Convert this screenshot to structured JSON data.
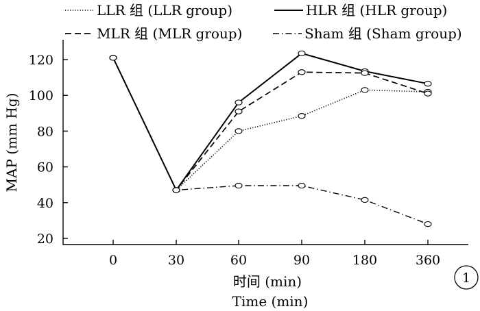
{
  "chart_data": {
    "type": "line",
    "x": [
      "0",
      "30",
      "60",
      "90",
      "180",
      "360"
    ],
    "series": [
      {
        "name": "LLR 组 (LLR group)",
        "style": "dotted",
        "values": [
          121,
          47,
          80,
          88.5,
          103,
          102
        ]
      },
      {
        "name": "HLR 组 (HLR group)",
        "style": "solid",
        "values": [
          121,
          47,
          96,
          123.5,
          113.5,
          106.5
        ]
      },
      {
        "name": "MLR 组 (MLR group)",
        "style": "dashed",
        "values": [
          121,
          47,
          91,
          113,
          112.5,
          101
        ]
      },
      {
        "name": "Sham 组 (Sham group)",
        "style": "dashdot",
        "values": [
          121,
          47,
          49.5,
          49.5,
          41.5,
          28
        ]
      }
    ],
    "ylabel": "MAP  (mm Hg)",
    "xlabel_cn": "时间 (min)",
    "xlabel_en": "Time  (min)",
    "ylim": [
      20,
      130
    ],
    "yticks": [
      20,
      40,
      60,
      80,
      100,
      120
    ],
    "grid": false,
    "legend_placement": "top",
    "panel_label": "1",
    "colors": {
      "line": "#000000",
      "background": "#ffffff"
    }
  }
}
